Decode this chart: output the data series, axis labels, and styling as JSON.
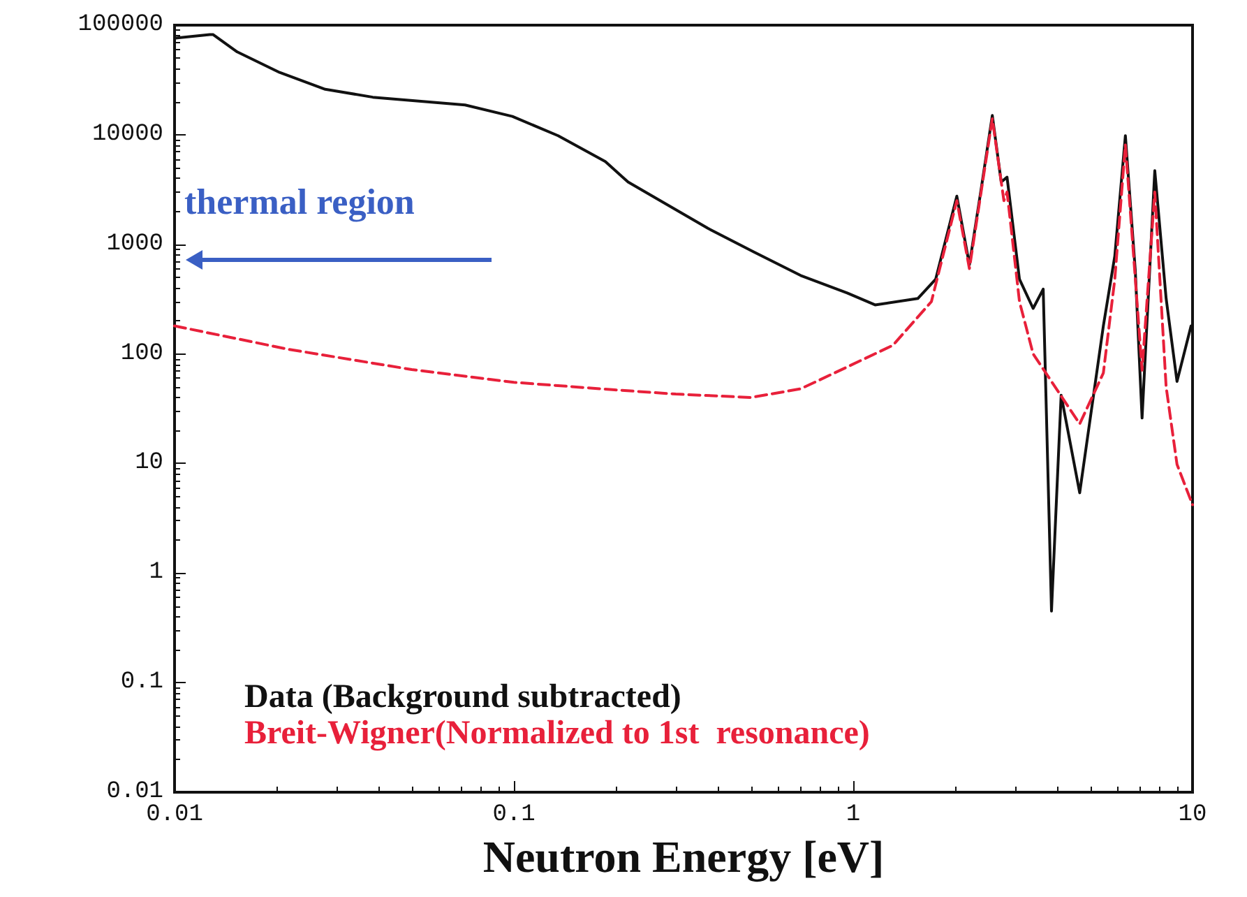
{
  "chart_data": {
    "type": "line",
    "xlabel": "Neutron Energy [eV]",
    "log": "xy",
    "xlim": [
      0.01,
      10
    ],
    "ylim": [
      0.01,
      100000
    ],
    "xticks": [
      0.01,
      0.1,
      1,
      10
    ],
    "yticks": [
      0.01,
      0.1,
      1,
      10,
      100,
      1000,
      10000,
      100000
    ],
    "grid": false,
    "marker": "none",
    "legend": "bottom left",
    "annotations": [
      "thermal region"
    ],
    "series": [
      {
        "name": "Data (Background subtracted)",
        "color": "#111111",
        "line_style": "solid",
        "x": [
          0.01,
          0.0127,
          0.013,
          0.0153,
          0.0204,
          0.0278,
          0.0384,
          0.0718,
          0.099,
          0.135,
          0.186,
          0.217,
          0.27,
          0.373,
          0.51,
          0.7,
          0.96,
          1.16,
          1.55,
          1.75,
          2.02,
          2.2,
          2.39,
          2.57,
          2.73,
          2.84,
          3.09,
          3.39,
          3.63,
          3.84,
          4.1,
          4.65,
          5.46,
          5.9,
          6.34,
          6.78,
          7.1,
          7.74,
          8.36,
          9.0,
          9.9
        ],
        "values": [
          76000,
          82000,
          82000,
          57000,
          37000,
          26000,
          22000,
          18700,
          14700,
          9800,
          5700,
          3700,
          2500,
          1400,
          850,
          520,
          360,
          280,
          320,
          480,
          2750,
          650,
          3400,
          15000,
          3700,
          4100,
          480,
          260,
          390,
          0.45,
          42,
          5.4,
          180,
          780,
          9800,
          580,
          26,
          4700,
          320,
          56,
          180
        ]
      },
      {
        "name": "Breit-Wigner(Normalized to 1st  resonance)",
        "color": "#e8203a",
        "line_style": "dashed",
        "x": [
          0.01,
          0.0217,
          0.05,
          0.1,
          0.198,
          0.3,
          0.5,
          0.7,
          0.96,
          1.31,
          1.7,
          2.02,
          2.2,
          2.57,
          2.78,
          2.84,
          3.09,
          3.39,
          4.65,
          5.46,
          5.9,
          6.34,
          7.1,
          7.74,
          8.36,
          9.0,
          10
        ],
        "values": [
          180,
          110,
          72,
          55,
          47,
          43,
          40,
          48,
          76,
          120,
          300,
          2500,
          600,
          14000,
          2500,
          3000,
          300,
          100,
          23,
          67,
          480,
          8100,
          71,
          3000,
          50,
          9.8,
          4.2
        ]
      }
    ]
  }
}
